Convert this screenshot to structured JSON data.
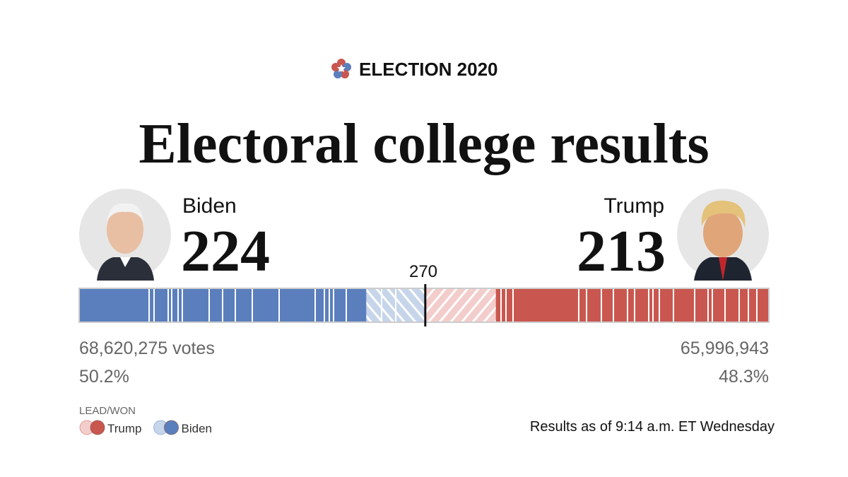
{
  "header": {
    "label": "ELECTION 2020"
  },
  "title": "Electoral college results",
  "candidates": [
    {
      "name": "Biden",
      "electoral_votes": 224,
      "lead": 46,
      "votes": "68,620,275 votes",
      "percent": "50.2%",
      "color": "#5b7fbd",
      "lead_color": "#c6d5ea"
    },
    {
      "name": "Trump",
      "electoral_votes": 213,
      "lead": 55,
      "votes": "65,996,943",
      "percent": "48.3%",
      "color": "#c9574f",
      "lead_color": "#f3cdcb"
    }
  ],
  "bar": {
    "xlim": [
      0,
      538
    ],
    "threshold": 270
  },
  "legend": {
    "title": "LEAD/WON",
    "items": [
      {
        "name": "Trump",
        "color": "#c9574f"
      },
      {
        "name": "Biden",
        "color": "#5b7fbd"
      }
    ]
  },
  "footnote": "Results as of 9:14 a.m. ET Wednesday"
}
